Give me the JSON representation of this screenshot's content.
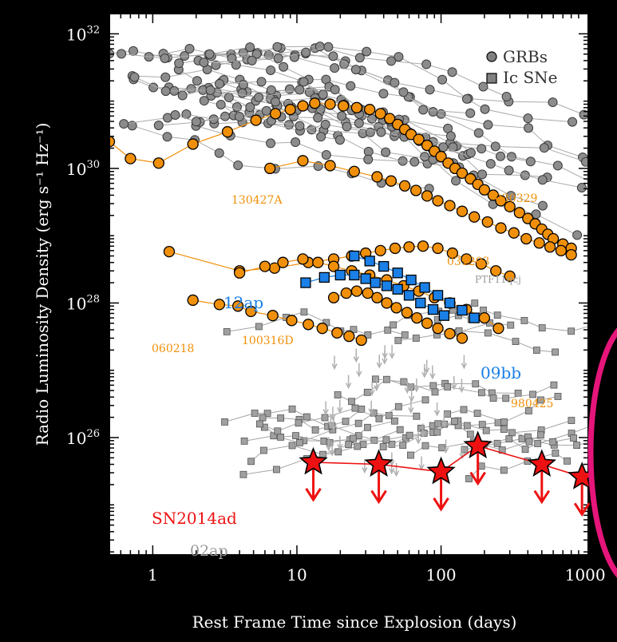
{
  "chart_data": {
    "type": "scatter",
    "title": "",
    "xlabel": "Rest Frame Time since Explosion (days)",
    "ylabel": "Radio Luminosity Density (erg s⁻¹ Hz⁻¹)",
    "xscale": "log",
    "yscale": "log",
    "xlim": [
      0.5,
      1050
    ],
    "ylim": [
      1.8e+24,
      2e+32
    ],
    "x_ticks": [
      {
        "value": 1,
        "label": "1"
      },
      {
        "value": 10,
        "label": "10"
      },
      {
        "value": 100,
        "label": "100"
      },
      {
        "value": 1000,
        "label": "1000"
      }
    ],
    "y_ticks": [
      {
        "value": 1e+26,
        "base": "10",
        "exp": "26"
      },
      {
        "value": 1e+28,
        "base": "10",
        "exp": "28"
      },
      {
        "value": 1e+30,
        "base": "10",
        "exp": "30"
      },
      {
        "value": 1e+32,
        "base": "10",
        "exp": "32"
      }
    ],
    "legend": {
      "placement": "top-right",
      "entries": [
        {
          "marker": "circle",
          "label": "GRBs"
        },
        {
          "marker": "square",
          "label": "Ic SNe"
        }
      ]
    },
    "colors": {
      "grb_background": "#8a8a8a",
      "highlight_grb": "#f0900a",
      "sn2012ap": "#1a7fe6",
      "sn_background": "#9a9a9a",
      "sn2014ad": "#ee1111",
      "upper_limit_gray": "#b0b0b0",
      "annotation_ellipse": "#e6157a"
    },
    "annotations": [
      {
        "text": "130427A",
        "color": "#f0900a"
      },
      {
        "text": "030329",
        "color": "#f0900a"
      },
      {
        "text": "031203",
        "color": "#f0900a"
      },
      {
        "text": "PTF11qcj",
        "color": "#9a9a9a"
      },
      {
        "text": "12ap",
        "color": "#1a7fe6"
      },
      {
        "text": "060218",
        "color": "#f0900a"
      },
      {
        "text": "100316D",
        "color": "#f0900a"
      },
      {
        "text": "09bb",
        "color": "#1a7fe6"
      },
      {
        "text": "980425",
        "color": "#f0900a"
      },
      {
        "text": "SN2014ad",
        "color": "#ee1111"
      },
      {
        "text": "02ap",
        "color": "#9a9a9a"
      }
    ],
    "series": [
      {
        "name": "130427A",
        "marker": "circle",
        "color": "#f0900a",
        "x": [
          0.5,
          0.7,
          1.1,
          1.9,
          3.3,
          5.2,
          7.1,
          9.0,
          11.0,
          13.3,
          17.0,
          21.0,
          26.0,
          32.0,
          38.0,
          44.0,
          50.0,
          56.0,
          62.0,
          70.0,
          80.0,
          90.0,
          100.0,
          112.0,
          125.0,
          140.0,
          160.0,
          180.0,
          200.0,
          230.0,
          260.0,
          300.0,
          350.0,
          400.0,
          450.0,
          500.0,
          550.0,
          600.0,
          700.0,
          800.0
        ],
        "y": [
          2.5e+30,
          1.4e+30,
          1.2e+30,
          2.3e+30,
          3.5e+30,
          5.2e+30,
          6.5e+30,
          7.5e+30,
          8.5e+30,
          9.3e+30,
          9e+30,
          8.5e+30,
          8e+30,
          7.5e+30,
          6.5e+30,
          5.5e+30,
          4.5e+30,
          3.8e+30,
          3.2e+30,
          2.7e+30,
          2.2e+30,
          1.8e+30,
          1.5e+30,
          1.2e+30,
          1e+30,
          8.5e+29,
          7e+29,
          5.8e+29,
          4.8e+29,
          4e+29,
          3.3e+29,
          2.7e+29,
          2.2e+29,
          1.8e+29,
          1.5e+29,
          1.25e+29,
          1.05e+29,
          9e+28,
          7.5e+28,
          6.5e+28
        ]
      },
      {
        "name": "030329",
        "marker": "circle",
        "color": "#f0900a",
        "x": [
          6.5,
          11,
          17,
          25,
          36,
          45,
          56,
          67,
          80,
          95,
          115,
          140,
          170,
          210,
          260,
          320,
          390,
          480,
          570,
          680,
          800
        ],
        "y": [
          1e+30,
          1.3e+30,
          1.1e+30,
          9e+29,
          7.5e+29,
          6.5e+29,
          5.5e+29,
          4.7e+29,
          3.9e+29,
          3.3e+29,
          2.8e+29,
          2.3e+29,
          1.9e+29,
          1.6e+29,
          1.3e+29,
          1.1e+29,
          9e+28,
          7.8e+28,
          6.8e+28,
          6e+28,
          5.2e+28
        ]
      },
      {
        "name": "031203",
        "marker": "circle",
        "color": "#f0900a",
        "x": [
          1.3,
          4.0,
          7.0,
          12,
          18,
          24,
          30,
          38,
          48,
          60,
          75,
          95,
          120,
          150,
          190,
          240,
          300
        ],
        "y": [
          5.8e+28,
          3e+28,
          3.3e+28,
          4e+28,
          4.5e+28,
          5e+28,
          5.5e+28,
          6e+28,
          6.5e+28,
          6.8e+28,
          7e+28,
          6.5e+28,
          5.5e+28,
          4.5e+28,
          3.8e+28,
          3e+28,
          2.5e+28
        ]
      },
      {
        "name": "060218",
        "marker": "circle",
        "color": "#f0900a",
        "x": [
          1.9,
          2.9,
          3.9,
          4.8,
          6.8,
          9.2,
          12,
          15,
          19,
          23,
          28
        ],
        "y": [
          1.1e+28,
          9.5e+27,
          9e+27,
          7.5e+27,
          6.5e+27,
          5.5e+27,
          4.8e+27,
          4.2e+27,
          3.6e+27,
          3.2e+27,
          2.8e+27
        ]
      },
      {
        "name": "100316D",
        "marker": "circle",
        "color": "#f0900a",
        "x": [
          18,
          22,
          26,
          31,
          36,
          42,
          49,
          58,
          68,
          80,
          95,
          115,
          140
        ],
        "y": [
          1.2e+28,
          1.4e+28,
          1.5e+28,
          1.4e+28,
          1.2e+28,
          1e+28,
          8.5e+27,
          7.2e+27,
          6e+27,
          5e+27,
          4.2e+27,
          3.5e+27,
          3e+27
        ]
      },
      {
        "name": "980425",
        "marker": "circle",
        "color": "#f0900a",
        "x": [
          4.0,
          6.0,
          8.0,
          11,
          14,
          18,
          24,
          32,
          42,
          55,
          70,
          90,
          115,
          150,
          200,
          250
        ],
        "y": [
          2.8e+28,
          3.5e+28,
          4e+28,
          4.5e+28,
          4e+28,
          3.5e+28,
          3e+28,
          2.6e+28,
          2.2e+28,
          1.8e+28,
          1.5e+28,
          1.2e+28,
          1e+28,
          8e+27,
          6e+27,
          4.2e+27
        ]
      },
      {
        "name": "12ap",
        "marker": "square",
        "color": "#1a7fe6",
        "x": [
          11.5,
          15.5,
          20,
          25,
          30,
          35,
          42,
          50,
          60,
          72,
          88,
          105
        ],
        "y": [
          2e+28,
          2.4e+28,
          2.6e+28,
          2.6e+28,
          2.3e+28,
          2e+28,
          1.8e+28,
          1.6e+28,
          1.3e+28,
          1e+28,
          8e+27,
          6.5e+27
        ]
      },
      {
        "name": "09bb",
        "marker": "square",
        "color": "#1a7fe6",
        "x": [
          25,
          32,
          40,
          50,
          62,
          77,
          95,
          115,
          140,
          170
        ],
        "y": [
          5e+28,
          4.2e+28,
          3.5e+28,
          2.8e+28,
          2.2e+28,
          1.7e+28,
          1.3e+28,
          1e+28,
          7.8e+27,
          6e+27
        ]
      },
      {
        "name": "SN2014ad",
        "marker": "star",
        "color": "#ee1111",
        "upper_limits": true,
        "x": [
          13,
          37,
          100,
          180,
          500,
          950
        ],
        "y": [
          4.3e+25,
          4e+25,
          3.1e+25,
          7.5e+25,
          4e+25,
          2.6e+25
        ]
      }
    ]
  },
  "annotation_ellipse_visible": true
}
